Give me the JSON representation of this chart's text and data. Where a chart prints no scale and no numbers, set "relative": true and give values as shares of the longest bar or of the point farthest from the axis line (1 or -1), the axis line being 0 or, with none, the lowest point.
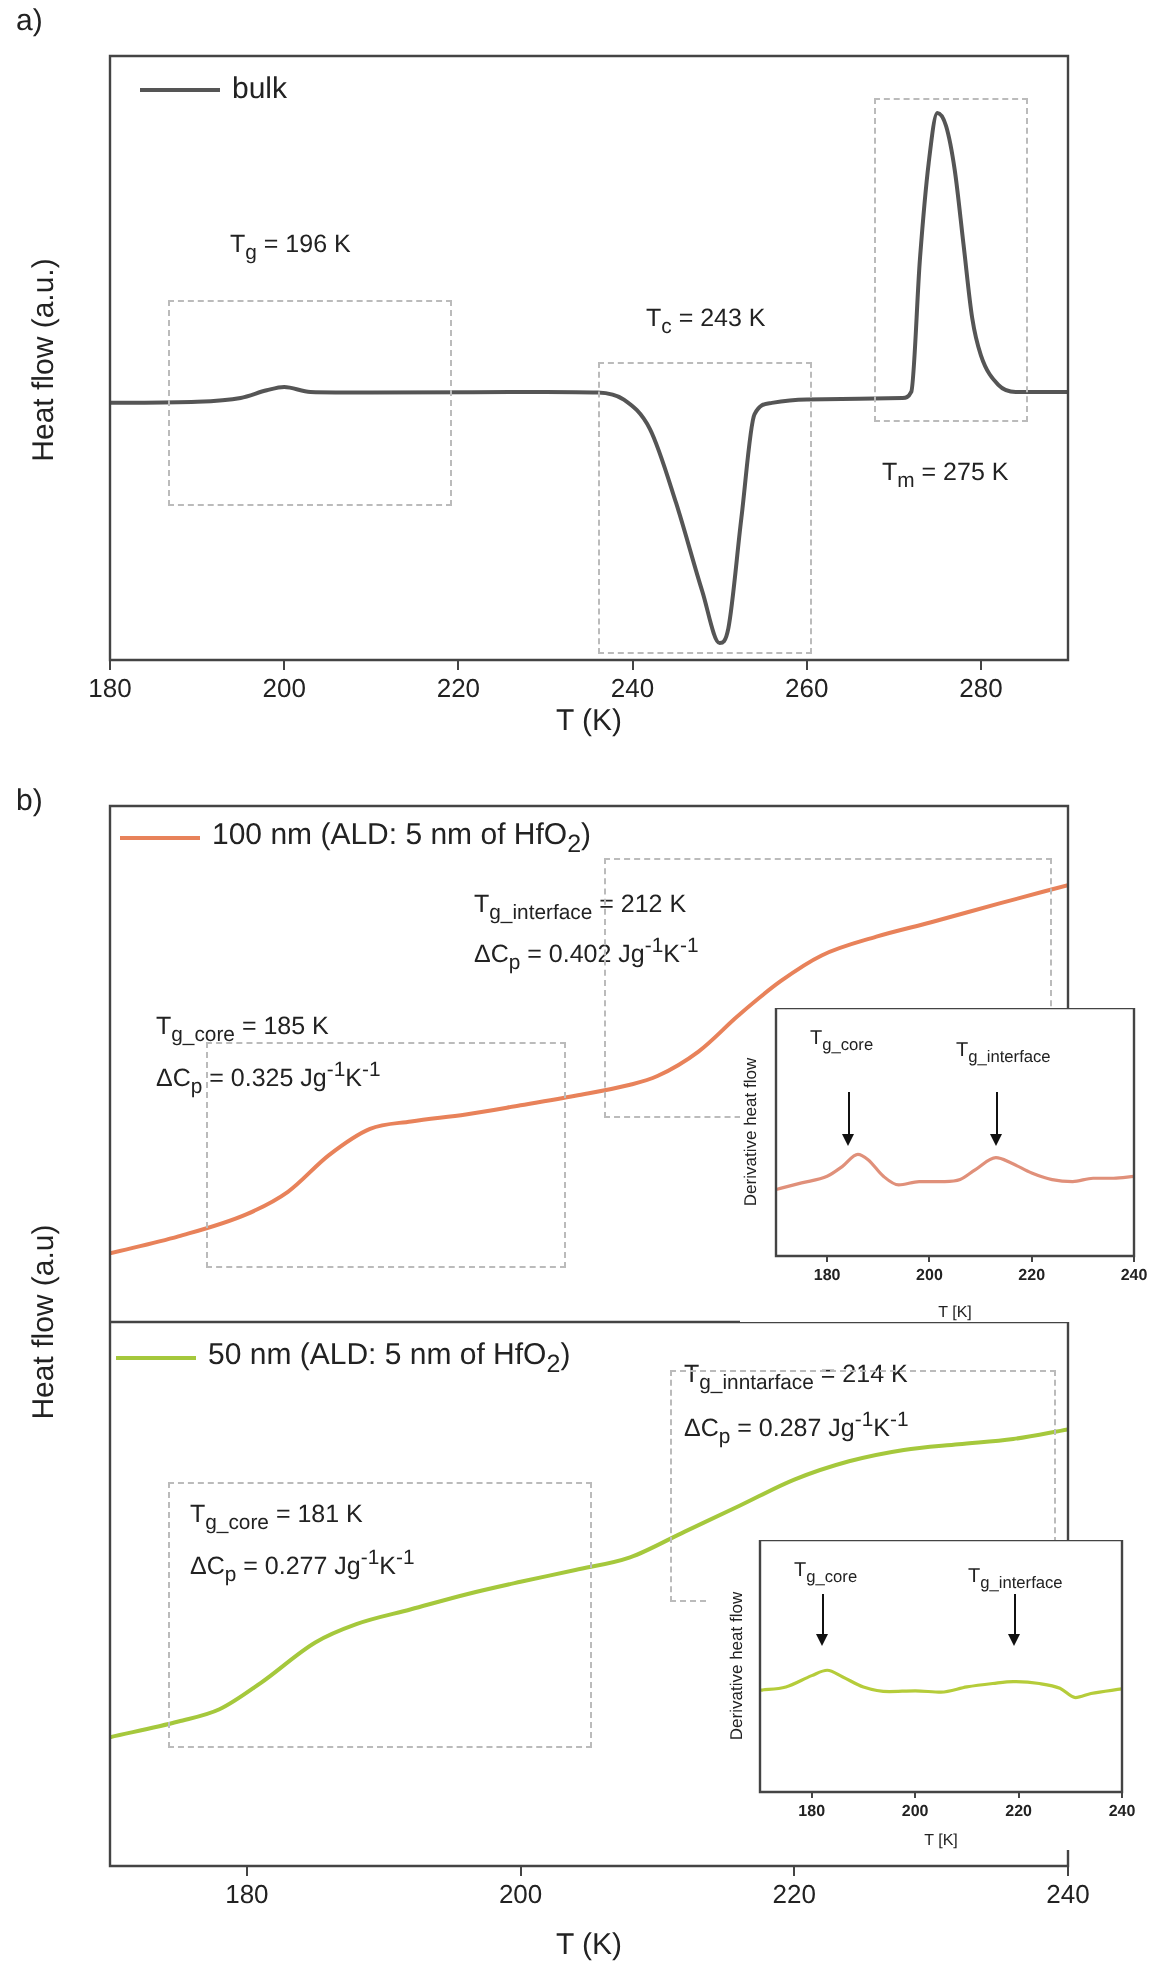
{
  "chart_data": [
    {
      "type": "line",
      "title": "a)",
      "xlabel": "T (K)",
      "ylabel": "Heat flow (a.u.)",
      "relative": true,
      "legend": "top left",
      "xlim": [
        180,
        290
      ],
      "xticks": [
        180,
        200,
        220,
        240,
        260,
        280
      ],
      "x": [
        180,
        190,
        195,
        198,
        200,
        203,
        210,
        230,
        236,
        239,
        242,
        245,
        248,
        250,
        251,
        252.5,
        254,
        256,
        260,
        271,
        272,
        273,
        274,
        275,
        276,
        277,
        278,
        279,
        280,
        282,
        284,
        290
      ],
      "series": [
        {
          "name": "bulk",
          "color": "#555555",
          "values": [
            0.47,
            0.472,
            0.479,
            0.493,
            0.499,
            0.49,
            0.489,
            0.49,
            0.489,
            0.476,
            0.422,
            0.287,
            0.126,
            0.031,
            0.058,
            0.26,
            0.449,
            0.47,
            0.476,
            0.479,
            0.49,
            0.733,
            0.908,
            1,
            0.976,
            0.895,
            0.76,
            0.625,
            0.557,
            0.503,
            0.49,
            0.49
          ]
        }
      ],
      "annotations": [
        "T$_{g}$ = 196 K",
        "T$_{c}$ = 243 K",
        "T$_{m}$ = 275 K"
      ]
    },
    {
      "type": "line",
      "title": "b)",
      "ylabel": "Heat flow (a.u)",
      "relative": true,
      "legend": "top left",
      "tick_labels": false,
      "xlim": [
        170,
        240
      ],
      "xticks": [
        180,
        200,
        220,
        240
      ],
      "x": [
        170,
        175,
        180,
        183,
        186,
        189,
        192,
        196,
        200,
        204,
        208,
        210,
        213,
        216,
        219,
        222,
        226,
        230,
        235,
        240
      ],
      "series": [
        {
          "name": "100 nm (ALD: 5 nm of HfO$_{2}$)",
          "color": "#e8825a",
          "values": [
            0.157,
            0.196,
            0.247,
            0.298,
            0.382,
            0.442,
            0.459,
            0.475,
            0.496,
            0.518,
            0.543,
            0.563,
            0.619,
            0.704,
            0.78,
            0.839,
            0.882,
            0.915,
            0.958,
            1
          ]
        }
      ],
      "annotations": [
        "T$_{g_interface}$ = 212 K",
        "ΔC$_{p}$ = 0.402 Jg$^{-1}$K$^{-1}$",
        "T$_{g_core}$ = 185 K",
        "ΔC$_{p}$ = 0.325 Jg$^{-1}$K$^{-1}$"
      ]
    },
    {
      "type": "line",
      "xlabel": "T (K)",
      "relative": true,
      "legend": "top left",
      "xlim": [
        170,
        240
      ],
      "xticks": [
        180,
        200,
        220,
        240
      ],
      "x": [
        170,
        175,
        178,
        181,
        185,
        188,
        192,
        196,
        200,
        204,
        208,
        212,
        216,
        220,
        224,
        228,
        232,
        236,
        240
      ],
      "series": [
        {
          "name": "50 nm (ALD: 5 nm of HfO$_{2}$)",
          "color": "#a5c83c",
          "values": [
            0.295,
            0.331,
            0.359,
            0.419,
            0.512,
            0.554,
            0.588,
            0.622,
            0.651,
            0.678,
            0.707,
            0.766,
            0.825,
            0.885,
            0.927,
            0.953,
            0.966,
            0.978,
            1
          ]
        }
      ],
      "annotations": [
        "T$_{g_inntarface}$ = 214 K",
        "ΔC$_{p}$ = 0.287 Jg$^{-1}$K$^{-1}$",
        "T$_{g_core}$ = 181 K",
        "ΔC$_{p}$ = 0.277 Jg$^{-1}$K$^{-1}$"
      ]
    },
    {
      "type": "line",
      "xlabel": "T [K]",
      "ylabel": "Derivative heat flow",
      "relative": true,
      "xlim": [
        170,
        240
      ],
      "xticks": [
        180,
        200,
        220,
        240
      ],
      "x": [
        170,
        175,
        180,
        183,
        186,
        188,
        191,
        194,
        198,
        203,
        206,
        209,
        213,
        216,
        220,
        224,
        228,
        232,
        236,
        240
      ],
      "series": [
        {
          "color": "#e0907a",
          "values": [
            0.654,
            0.719,
            0.784,
            0.882,
            1,
            0.948,
            0.784,
            0.699,
            0.732,
            0.732,
            0.752,
            0.85,
            0.967,
            0.915,
            0.817,
            0.752,
            0.732,
            0.765,
            0.765,
            0.784
          ]
        }
      ],
      "annotations": [
        "T$_{g_core}$",
        "T$_{g_interface}$"
      ]
    },
    {
      "type": "line",
      "xlabel": "T [K]",
      "ylabel": "Derivative heat flow",
      "relative": true,
      "xlim": [
        170,
        240
      ],
      "xticks": [
        180,
        200,
        220,
        240
      ],
      "x": [
        170,
        175,
        180,
        183,
        186,
        190,
        195,
        200,
        205,
        210,
        215,
        219,
        224,
        228,
        231,
        234,
        240
      ],
      "series": [
        {
          "color": "#b5cc3a",
          "values": [
            0.836,
            0.863,
            0.956,
            1,
            0.945,
            0.863,
            0.825,
            0.831,
            0.82,
            0.863,
            0.891,
            0.907,
            0.891,
            0.852,
            0.776,
            0.809,
            0.847
          ]
        }
      ],
      "annotations": [
        "T$_{g_core}$",
        "T$_{g_interface}$"
      ]
    }
  ]
}
